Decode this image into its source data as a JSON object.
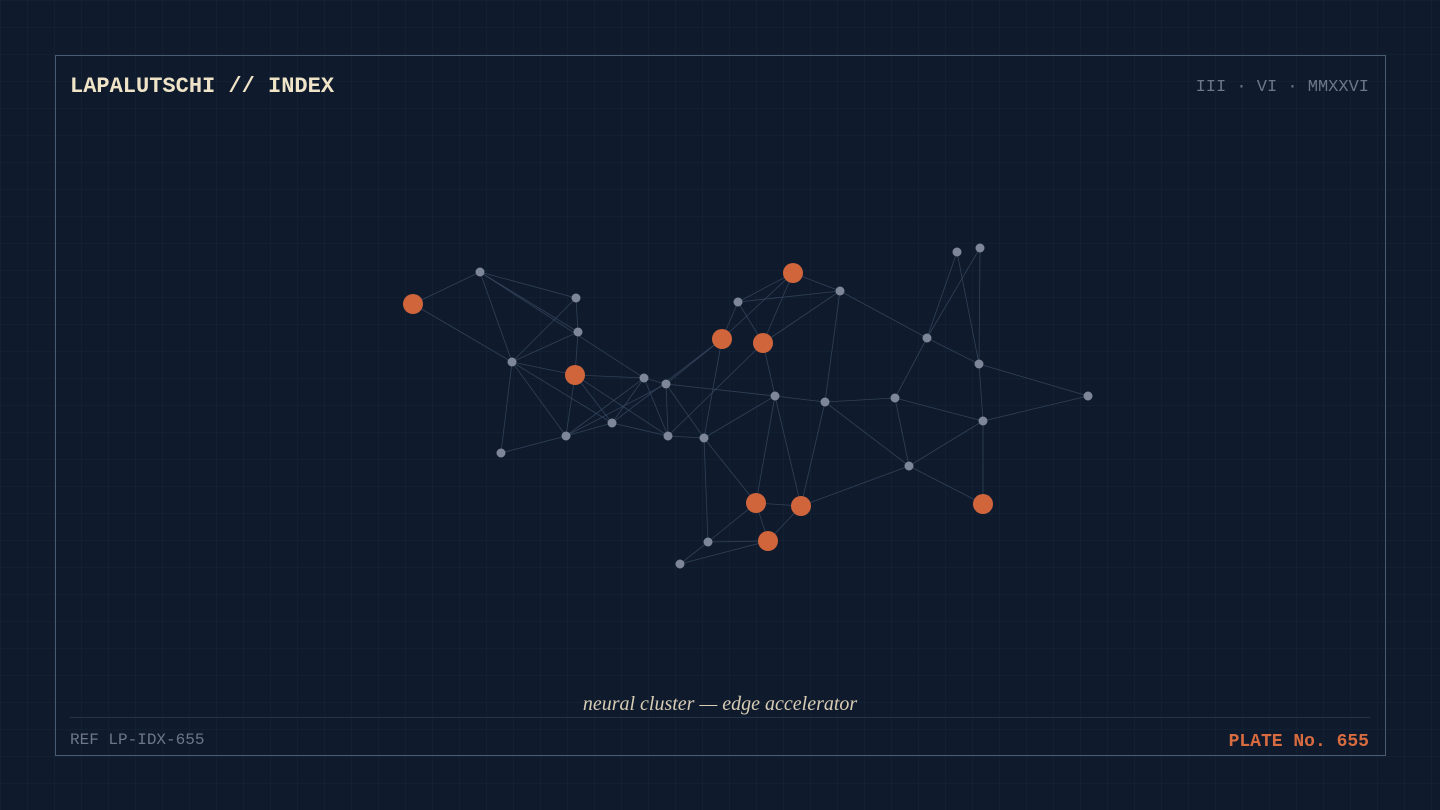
{
  "header": {
    "title": "LAPALUTSCHI // INDEX",
    "date": "III · VI · MMXXVI"
  },
  "caption": "neural cluster — edge accelerator",
  "footer": {
    "ref": "REF LP-IDX-655",
    "plate": "PLATE No. 655"
  }
}
